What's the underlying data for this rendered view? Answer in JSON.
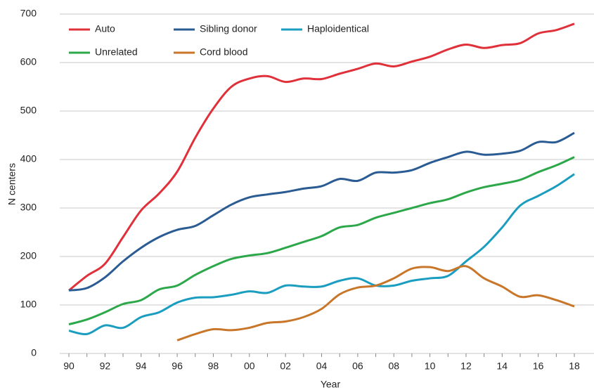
{
  "chart_data": {
    "type": "line",
    "x_label": "Year",
    "y_label": "N centers",
    "categories": [
      "90",
      null,
      "92",
      null,
      "94",
      null,
      "96",
      null,
      "98",
      null,
      "00",
      null,
      "02",
      null,
      "04",
      null,
      "06",
      null,
      "08",
      null,
      "10",
      null,
      "12",
      null,
      "14",
      null,
      "16",
      null,
      "18"
    ],
    "ylim": [
      0,
      700
    ],
    "yticks": [
      0,
      100,
      200,
      300,
      400,
      500,
      600,
      700
    ],
    "grid": true,
    "legend": "upper left",
    "series": [
      {
        "name": "Auto",
        "color": "#e0303a",
        "values": [
          130,
          160,
          185,
          240,
          295,
          330,
          375,
          445,
          505,
          550,
          567,
          572,
          560,
          567,
          566,
          577,
          587,
          598,
          592,
          602,
          612,
          627,
          637,
          630,
          636,
          640,
          660,
          667,
          680
        ]
      },
      {
        "name": "Sibling donor",
        "color": "#2a5b93",
        "values": [
          130,
          135,
          157,
          190,
          218,
          240,
          255,
          263,
          285,
          307,
          322,
          328,
          333,
          340,
          345,
          360,
          356,
          373,
          373,
          378,
          393,
          405,
          416,
          410,
          412,
          418,
          436,
          436,
          455
        ]
      },
      {
        "name": "Haploidentical",
        "color": "#1b9dc0",
        "values": [
          47,
          40,
          58,
          53,
          75,
          85,
          105,
          115,
          116,
          121,
          128,
          125,
          140,
          138,
          138,
          150,
          155,
          140,
          140,
          150,
          155,
          160,
          190,
          220,
          260,
          305,
          325,
          345,
          370
        ]
      },
      {
        "name": "Unrelated",
        "color": "#2ca84a",
        "values": [
          60,
          70,
          85,
          102,
          110,
          132,
          140,
          162,
          180,
          195,
          202,
          207,
          218,
          230,
          242,
          260,
          265,
          280,
          290,
          300,
          310,
          318,
          332,
          343,
          350,
          358,
          374,
          388,
          405
        ]
      },
      {
        "name": "Cord blood",
        "color": "#c8772a",
        "values": [
          null,
          null,
          null,
          null,
          null,
          null,
          27,
          40,
          50,
          48,
          53,
          63,
          66,
          75,
          92,
          122,
          136,
          140,
          155,
          175,
          178,
          170,
          180,
          155,
          138,
          117,
          120,
          110,
          97
        ]
      }
    ]
  }
}
